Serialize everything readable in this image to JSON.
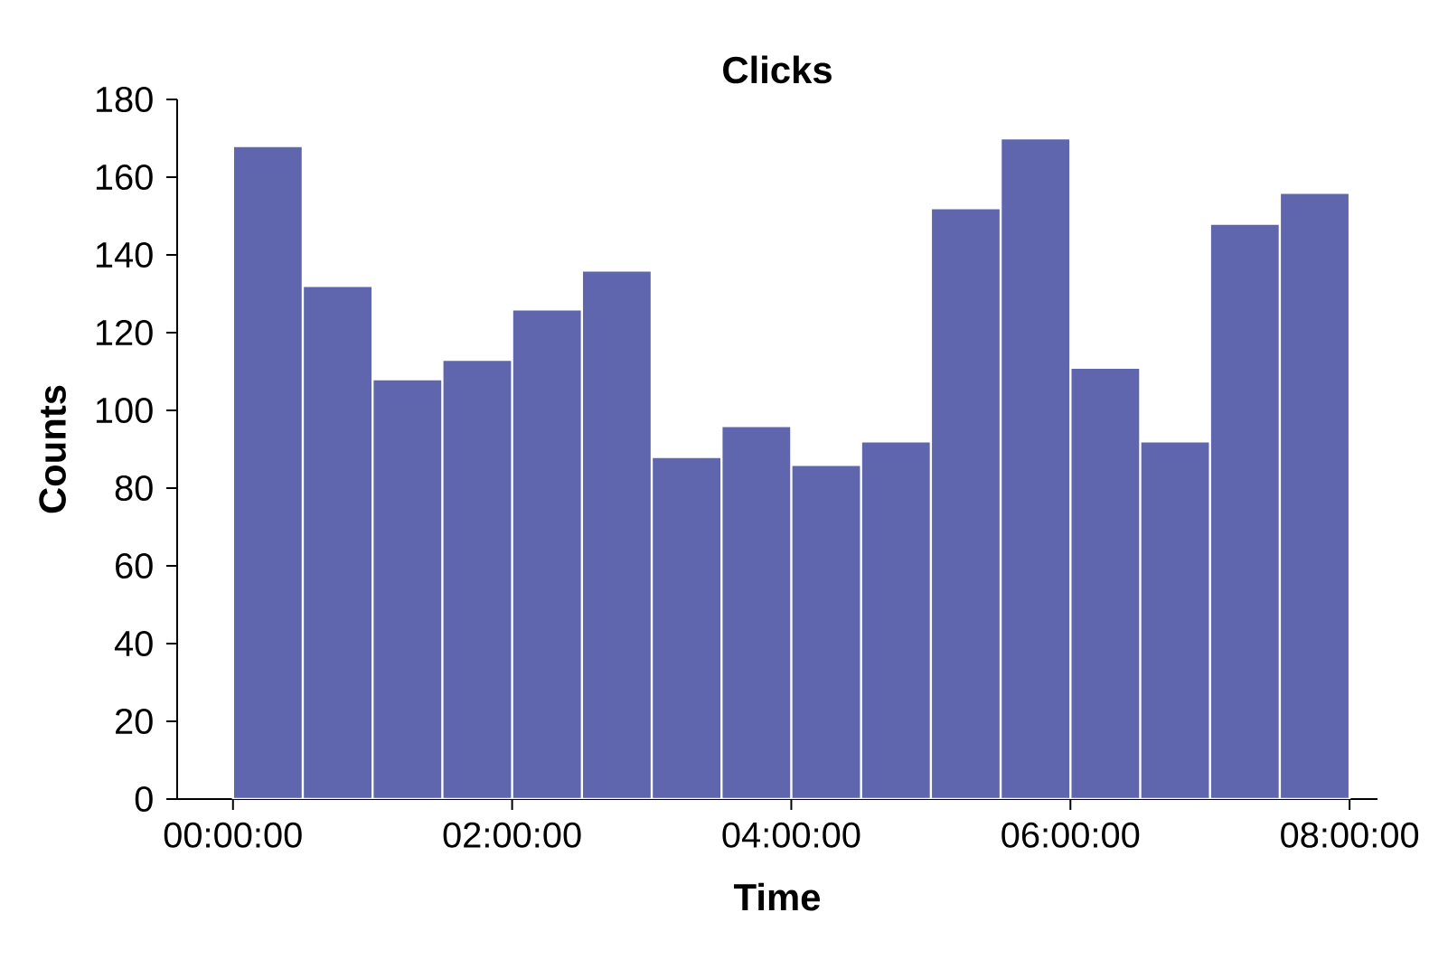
{
  "chart_data": {
    "type": "histogram",
    "title": "Clicks",
    "xlabel": "Time",
    "ylabel": "Counts",
    "bins": [
      0,
      0.5,
      1,
      1.5,
      2,
      2.5,
      3,
      3.5,
      4,
      4.5,
      5,
      5.5,
      6,
      6.5,
      7,
      7.5,
      8
    ],
    "values": [
      168,
      132,
      108,
      113,
      126,
      136,
      88,
      96,
      86,
      92,
      152,
      170,
      111,
      92,
      148,
      156
    ],
    "color": "#5f66ae",
    "xlim": [
      -0.4,
      8.2
    ],
    "xticks": [
      {
        "value": 0,
        "label": "00:00:00"
      },
      {
        "value": 2,
        "label": "02:00:00"
      },
      {
        "value": 4,
        "label": "04:00:00"
      },
      {
        "value": 6,
        "label": "06:00:00"
      },
      {
        "value": 8,
        "label": "08:00:00"
      }
    ],
    "ylim": [
      0,
      180
    ],
    "yticks": [
      0,
      20,
      40,
      60,
      80,
      100,
      120,
      140,
      160,
      180
    ],
    "grid": false
  }
}
